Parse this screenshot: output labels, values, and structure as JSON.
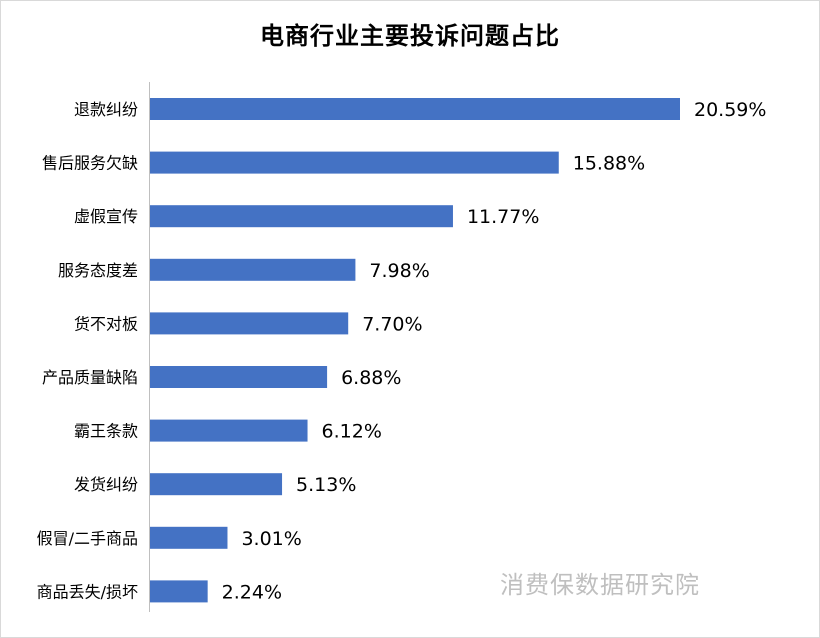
{
  "chart_data": {
    "type": "bar",
    "orientation": "horizontal",
    "title": "电商行业主要投诉问题占比",
    "categories": [
      "退款纠纷",
      "售后服务欠缺",
      "虚假宣传",
      "服务态度差",
      "货不对板",
      "产品质量缺陷",
      "霸王条款",
      "发货纠纷",
      "假冒/二手商品",
      "商品丢失/损坏"
    ],
    "values": [
      20.59,
      15.88,
      11.77,
      7.98,
      7.7,
      6.88,
      6.12,
      5.13,
      3.01,
      2.24
    ],
    "value_labels": [
      "20.59%",
      "15.88%",
      "11.77%",
      "7.98%",
      "7.70%",
      "6.88%",
      "6.12%",
      "5.13%",
      "3.01%",
      "2.24%"
    ],
    "xlim": [
      0,
      24
    ],
    "grid": false,
    "legend": "none",
    "bar_color": "#4472C4"
  },
  "watermark": "消费保数据研究院"
}
